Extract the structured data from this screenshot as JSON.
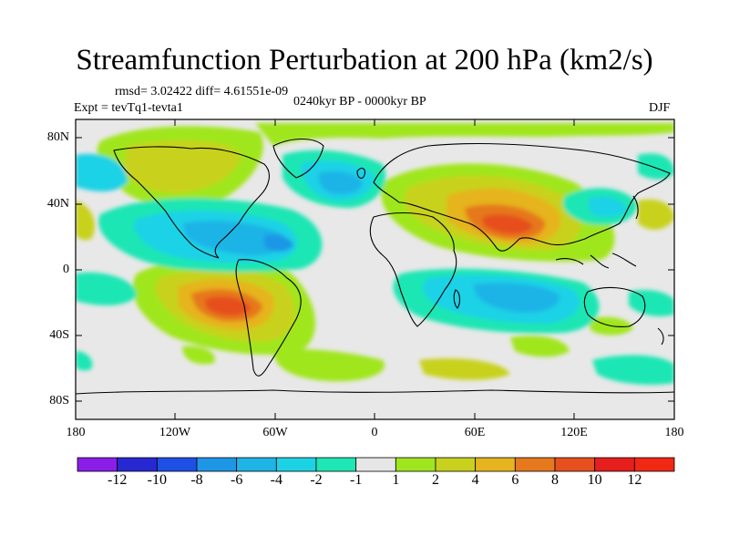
{
  "title": "Streamfunction Perturbation at 200 hPa (km2/s)",
  "stats": "rmsd= 3.02422 diff= 4.61551e-09",
  "experiment": "Expt = tevTq1-tevta1",
  "period": "0240kyr BP - 0000kyr BP",
  "season": "DJF",
  "lat_labels": [
    "80N",
    "40N",
    "0",
    "40S",
    "80S"
  ],
  "lon_labels": [
    "180",
    "120W",
    "60W",
    "0",
    "60E",
    "120E",
    "180"
  ],
  "colorbar": {
    "labels": [
      "-12",
      "-10",
      "-8",
      "-6",
      "-4",
      "-2",
      "-1",
      "1",
      "2",
      "4",
      "6",
      "8",
      "10",
      "12"
    ],
    "colors": [
      "#8a1ee6",
      "#2828d2",
      "#1e50e6",
      "#1e96e6",
      "#1eb4e6",
      "#1ed2e6",
      "#1ee6b4",
      "#e6e6e6",
      "#a0e61e",
      "#c8d21e",
      "#e6b41e",
      "#e6781e",
      "#e6501e",
      "#e61e1e",
      "#f02814"
    ]
  }
}
